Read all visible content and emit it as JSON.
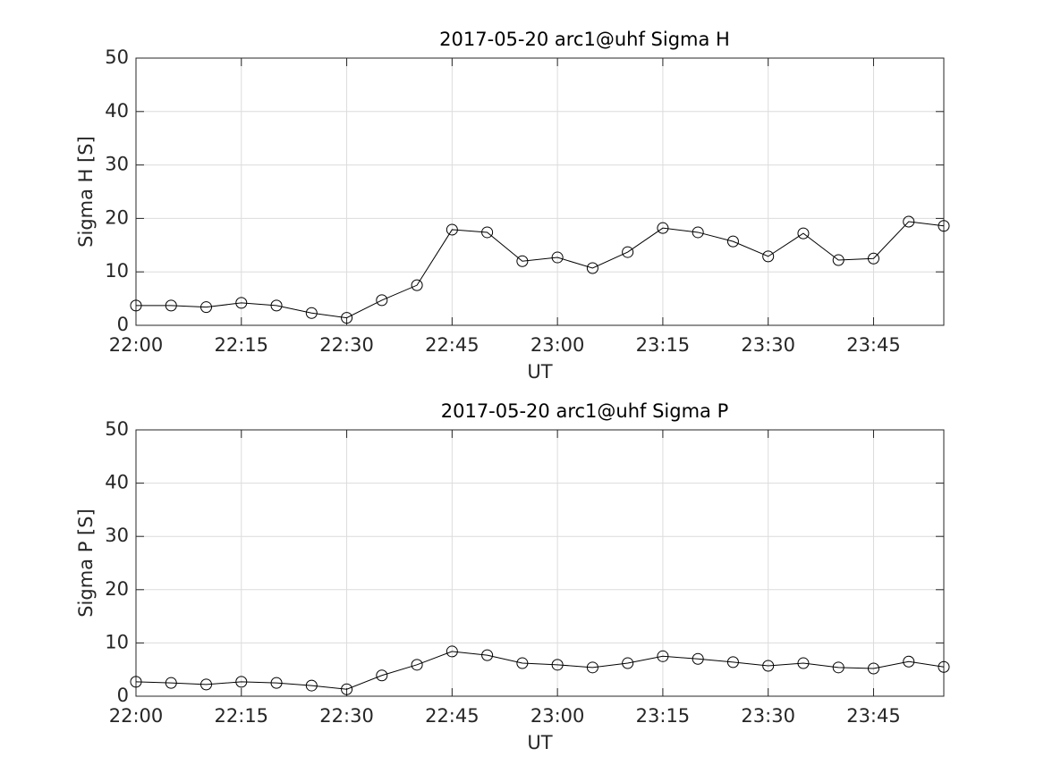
{
  "chart_data": [
    {
      "type": "line",
      "title": "2017-05-20  arc1@uhf Sigma H",
      "xlabel": "UT",
      "ylabel": "Sigma H [S]",
      "color": "#000000",
      "marker": "circle",
      "grid": true,
      "x": [
        "22:00",
        "22:05",
        "22:10",
        "22:15",
        "22:20",
        "22:25",
        "22:30",
        "22:35",
        "22:40",
        "22:45",
        "22:50",
        "22:55",
        "23:00",
        "23:05",
        "23:10",
        "23:15",
        "23:20",
        "23:25",
        "23:30",
        "23:35",
        "23:40",
        "23:45",
        "23:50",
        "23:55"
      ],
      "values": [
        3.7,
        3.7,
        3.4,
        4.2,
        3.7,
        2.3,
        1.4,
        4.7,
        7.5,
        17.9,
        17.4,
        12,
        12.7,
        10.7,
        13.7,
        18.2,
        17.4,
        15.7,
        12.9,
        17.2,
        12.2,
        12.5,
        19.4,
        18.6
      ],
      "xlim": [
        "22:00",
        "23:55"
      ],
      "xticks": [
        "22:00",
        "22:15",
        "22:30",
        "22:45",
        "23:00",
        "23:15",
        "23:30",
        "23:45"
      ],
      "ylim": [
        0,
        50
      ],
      "yticks": [
        0,
        10,
        20,
        30,
        40,
        50
      ]
    },
    {
      "type": "line",
      "title": "2017-05-20  arc1@uhf Sigma P",
      "xlabel": "UT",
      "ylabel": "Sigma P [S]",
      "color": "#000000",
      "marker": "circle",
      "grid": true,
      "x": [
        "22:00",
        "22:05",
        "22:10",
        "22:15",
        "22:20",
        "22:25",
        "22:30",
        "22:35",
        "22:40",
        "22:45",
        "22:50",
        "22:55",
        "23:00",
        "23:05",
        "23:10",
        "23:15",
        "23:20",
        "23:25",
        "23:30",
        "23:35",
        "23:40",
        "23:45",
        "23:50",
        "23:55"
      ],
      "values": [
        2.7,
        2.5,
        2.2,
        2.7,
        2.5,
        2.0,
        1.3,
        3.9,
        5.9,
        8.4,
        7.7,
        6.2,
        5.9,
        5.4,
        6.2,
        7.5,
        7.0,
        6.4,
        5.7,
        6.2,
        5.4,
        5.2,
        6.5,
        5.5
      ],
      "xlim": [
        "22:00",
        "23:55"
      ],
      "xticks": [
        "22:00",
        "22:15",
        "22:30",
        "22:45",
        "23:00",
        "23:15",
        "23:30",
        "23:45"
      ],
      "ylim": [
        0,
        50
      ],
      "yticks": [
        0,
        10,
        20,
        30,
        40,
        50
      ]
    }
  ]
}
